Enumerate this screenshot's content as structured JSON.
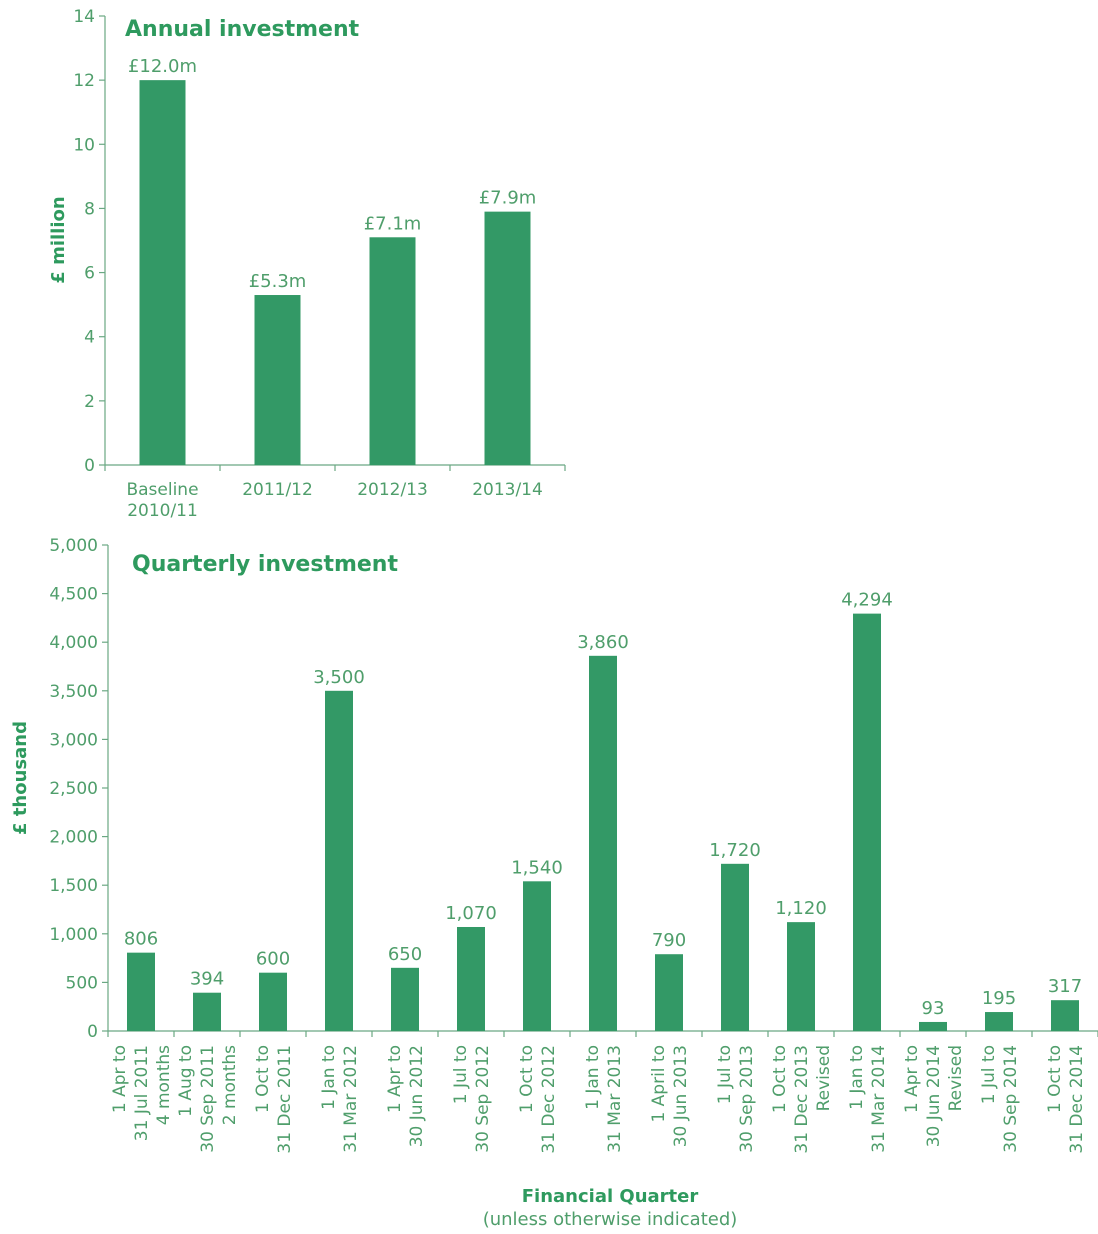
{
  "colors": {
    "bar": "#339966",
    "axis": "#6aa883",
    "text": "#4f9e6b",
    "title": "#2e9a5e"
  },
  "chart_data": [
    {
      "type": "bar",
      "title": "Annual investment",
      "ylabel": "£ million",
      "xlabel": "",
      "ylim": [
        0,
        14
      ],
      "yticks": [
        "0",
        "2",
        "4",
        "6",
        "8",
        "10",
        "12",
        "14"
      ],
      "grid": false,
      "categories": [
        [
          "Baseline",
          "2010/11"
        ],
        [
          "2011/12"
        ],
        [
          "2012/13"
        ],
        [
          "2013/14"
        ]
      ],
      "values": [
        12.0,
        5.3,
        7.1,
        7.9
      ],
      "value_labels": [
        "£12.0m",
        "£5.3m",
        "£7.1m",
        "£7.9m"
      ]
    },
    {
      "type": "bar",
      "title": "Quarterly investment",
      "ylabel": "£ thousand",
      "xlabel": "Financial Quarter",
      "xlabel_sub": "(unless otherwise indicated)",
      "ylim": [
        0,
        5000
      ],
      "yticks": [
        "0",
        "500",
        "1,000",
        "1,500",
        "2,000",
        "2,500",
        "3,000",
        "3,500",
        "4,000",
        "4,500",
        "5,000"
      ],
      "grid": false,
      "categories": [
        [
          "1 Apr to",
          "31 Jul 2011",
          "4 months"
        ],
        [
          "1 Aug to",
          "30 Sep 2011",
          "2 months"
        ],
        [
          "1 Oct to",
          "31 Dec 2011"
        ],
        [
          "1 Jan to",
          "31 Mar 2012"
        ],
        [
          "1 Apr to",
          "30 Jun 2012"
        ],
        [
          "1 Jul to",
          "30 Sep 2012"
        ],
        [
          "1 Oct to",
          "31 Dec 2012"
        ],
        [
          "1 Jan to",
          "31 Mar 2013"
        ],
        [
          "1 April to",
          "30 Jun 2013"
        ],
        [
          "1 Jul to",
          "30 Sep 2013"
        ],
        [
          "1 Oct to",
          "31 Dec 2013",
          "Revised"
        ],
        [
          "1 Jan to",
          "31 Mar 2014"
        ],
        [
          "1 Apr to",
          "30 Jun 2014",
          "Revised"
        ],
        [
          "1 Jul to",
          "30 Sep 2014"
        ],
        [
          "1 Oct to",
          "31 Dec 2014"
        ]
      ],
      "values": [
        806,
        394,
        600,
        3500,
        650,
        1070,
        1540,
        3860,
        790,
        1720,
        1120,
        4294,
        93,
        195,
        317
      ],
      "value_labels": [
        "806",
        "394",
        "600",
        "3,500",
        "650",
        "1,070",
        "1,540",
        "3,860",
        "790",
        "1,720",
        "1,120",
        "4,294",
        "93",
        "195",
        "317"
      ]
    }
  ]
}
